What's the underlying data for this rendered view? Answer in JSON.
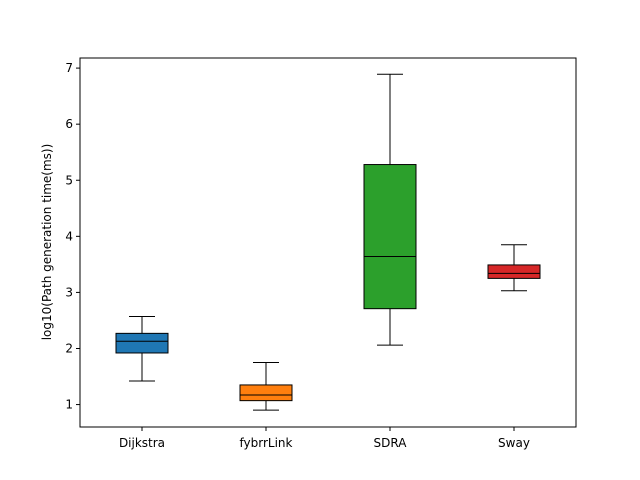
{
  "chart_data": {
    "type": "boxplot",
    "title": "",
    "xlabel": "",
    "ylabel": "log10(Path generation time(ms))",
    "ylim": [
      0.6,
      7.18
    ],
    "yticks": [
      "1",
      "2",
      "3",
      "4",
      "5",
      "6",
      "7"
    ],
    "grid": false,
    "categories": [
      "Dijkstra",
      "fybrrLink",
      "SDRA",
      "Sway"
    ],
    "boxes": [
      {
        "whisker_low": 1.42,
        "q1": 1.92,
        "median": 2.13,
        "q3": 2.27,
        "whisker_high": 2.57,
        "color": "#1f77b4"
      },
      {
        "whisker_low": 0.9,
        "q1": 1.07,
        "median": 1.17,
        "q3": 1.35,
        "whisker_high": 1.75,
        "color": "#ff7f0e"
      },
      {
        "whisker_low": 2.06,
        "q1": 2.71,
        "median": 3.64,
        "q3": 5.28,
        "whisker_high": 6.89,
        "color": "#2ca02c"
      },
      {
        "whisker_low": 3.03,
        "q1": 3.25,
        "median": 3.34,
        "q3": 3.49,
        "whisker_high": 3.85,
        "color": "#d62728"
      }
    ]
  }
}
